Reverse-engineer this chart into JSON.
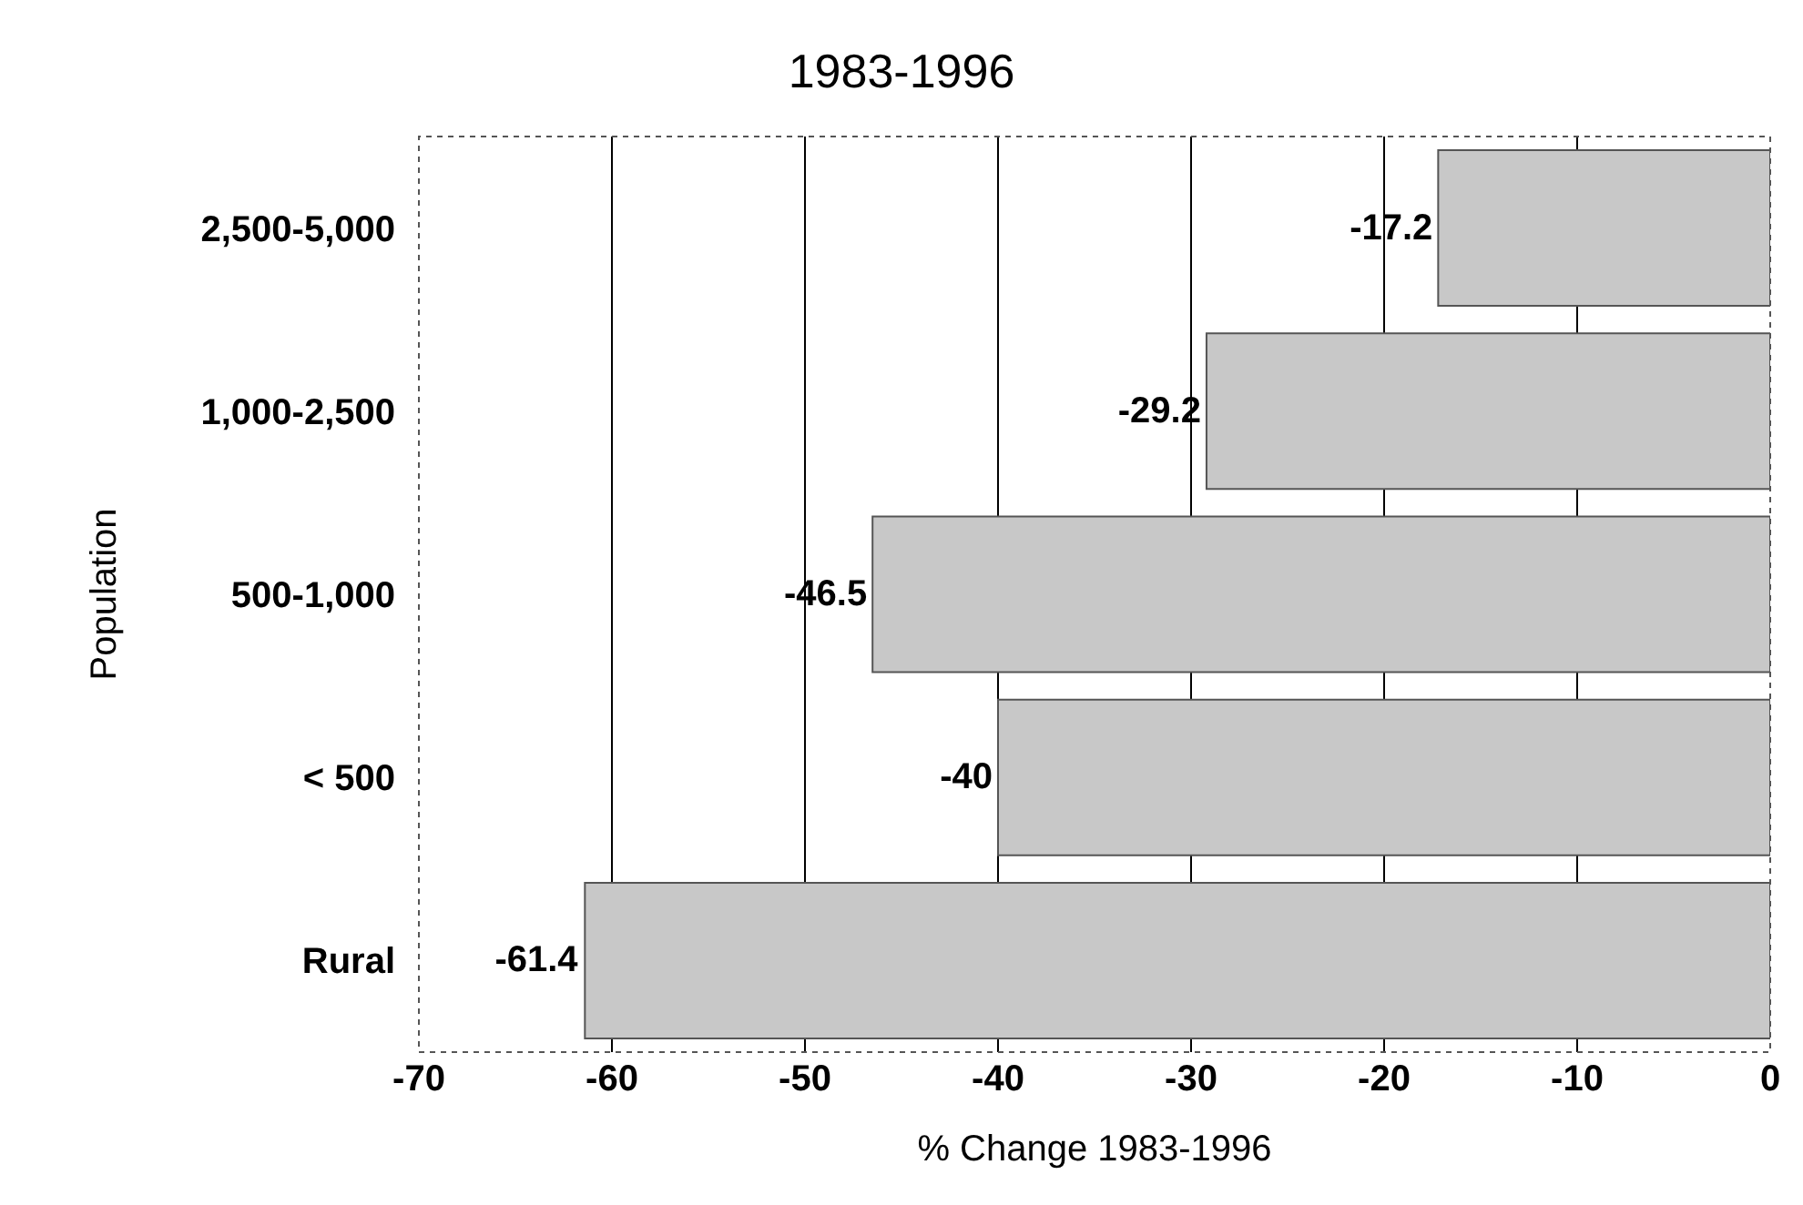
{
  "chart_data": {
    "type": "bar",
    "orientation": "horizontal",
    "title": "1983-1996",
    "xlabel": "% Change 1983-1996",
    "ylabel": "Population",
    "categories": [
      "2,500-5,000",
      "1,000-2,500",
      "500-1,000",
      "< 500",
      "Rural"
    ],
    "values": [
      -17.2,
      -29.2,
      -46.5,
      -40,
      -61.4
    ],
    "color": "#c8c8c8",
    "xlim": [
      -70,
      0
    ],
    "xticks": [
      -70,
      -60,
      -50,
      -40,
      -30,
      -20,
      -10,
      0
    ],
    "grid": "x",
    "data_labels": true,
    "legend": false
  }
}
